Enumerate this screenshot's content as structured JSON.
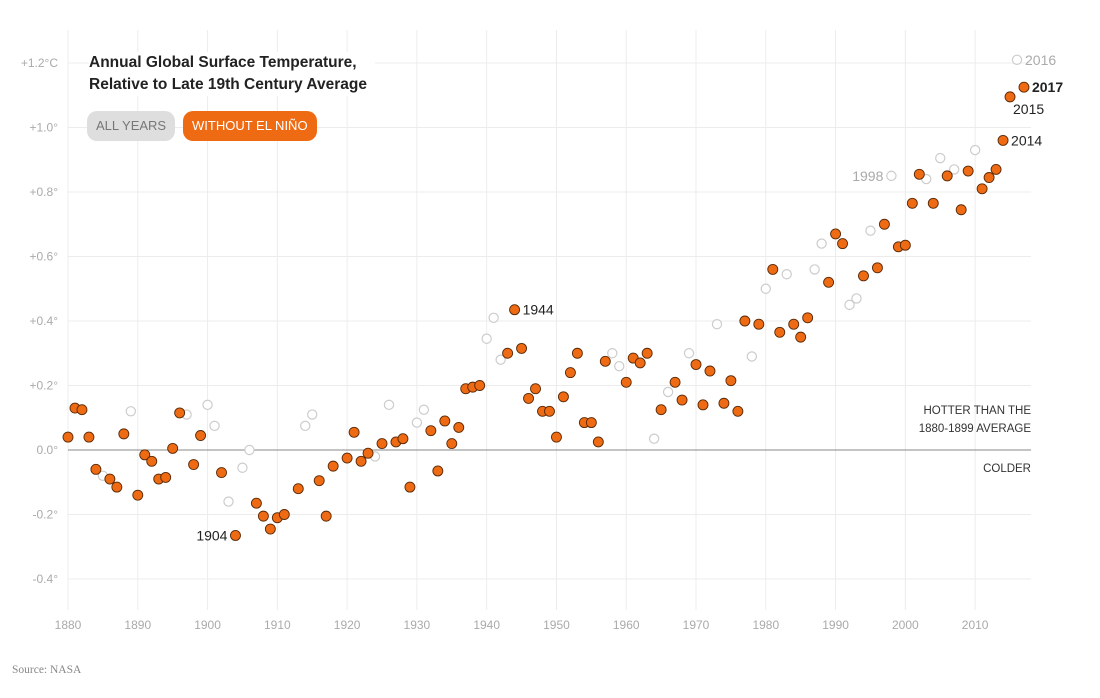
{
  "chart_data": {
    "type": "scatter",
    "title": "Annual Global Surface Temperature,\nRelative to Late 19th Century Average",
    "title_lines": [
      "Annual Global Surface Temperature,",
      "Relative to Late 19th Century Average"
    ],
    "xlim": [
      1880,
      2017
    ],
    "ylim": [
      -0.45,
      1.25
    ],
    "x_ticks": [
      1880,
      1890,
      1900,
      1910,
      1920,
      1930,
      1940,
      1950,
      1960,
      1970,
      1980,
      1990,
      2000,
      2010
    ],
    "x_tick_labels": [
      "1880",
      "1890",
      "1900",
      "1910",
      "1920",
      "1930",
      "1940",
      "1950",
      "1960",
      "1970",
      "1980",
      "1990",
      "2000",
      "2010"
    ],
    "y_ticks": [
      -0.4,
      -0.2,
      0.0,
      0.2,
      0.4,
      0.6,
      0.8,
      1.0,
      1.2
    ],
    "y_tick_labels": [
      "-0.4°",
      "-0.2°",
      "0.0°",
      "+0.2°",
      "+0.4°",
      "+0.6°",
      "+0.8°",
      "+1.0°",
      "+1.2°C"
    ],
    "grid": true,
    "colors": {
      "without_el_nino": "#ee6b13",
      "all_years": "#cccccc",
      "zero_line": "#888888"
    },
    "series": [
      {
        "name": "WITHOUT EL NIÑO",
        "x": [
          1880,
          1881,
          1882,
          1883,
          1884,
          1886,
          1887,
          1888,
          1890,
          1891,
          1892,
          1893,
          1894,
          1895,
          1896,
          1898,
          1899,
          1902,
          1904,
          1907,
          1908,
          1909,
          1910,
          1911,
          1913,
          1916,
          1917,
          1918,
          1920,
          1921,
          1922,
          1923,
          1925,
          1927,
          1928,
          1929,
          1932,
          1933,
          1934,
          1935,
          1936,
          1937,
          1938,
          1939,
          1943,
          1944,
          1945,
          1946,
          1947,
          1948,
          1949,
          1950,
          1951,
          1952,
          1953,
          1954,
          1955,
          1956,
          1957,
          1960,
          1961,
          1962,
          1963,
          1965,
          1967,
          1968,
          1970,
          1971,
          1972,
          1974,
          1975,
          1976,
          1977,
          1979,
          1981,
          1982,
          1984,
          1985,
          1986,
          1989,
          1990,
          1991,
          1994,
          1996,
          1997,
          1999,
          2000,
          2001,
          2002,
          2004,
          2006,
          2008,
          2009,
          2011,
          2012,
          2013,
          2014,
          2015,
          2017
        ],
        "y": [
          0.04,
          0.13,
          0.125,
          0.04,
          -0.06,
          -0.09,
          -0.115,
          0.05,
          -0.14,
          -0.015,
          -0.035,
          -0.09,
          -0.085,
          0.005,
          0.115,
          -0.045,
          0.045,
          -0.07,
          -0.265,
          -0.165,
          -0.205,
          -0.245,
          -0.21,
          -0.2,
          -0.12,
          -0.095,
          -0.205,
          -0.05,
          -0.025,
          0.055,
          -0.035,
          -0.01,
          0.02,
          0.025,
          0.035,
          -0.115,
          0.06,
          -0.065,
          0.09,
          0.02,
          0.07,
          0.19,
          0.195,
          0.2,
          0.3,
          0.435,
          0.315,
          0.16,
          0.19,
          0.12,
          0.12,
          0.04,
          0.165,
          0.24,
          0.3,
          0.085,
          0.085,
          0.025,
          0.275,
          0.21,
          0.285,
          0.27,
          0.3,
          0.125,
          0.21,
          0.155,
          0.265,
          0.14,
          0.245,
          0.145,
          0.215,
          0.12,
          0.4,
          0.39,
          0.56,
          0.365,
          0.39,
          0.35,
          0.41,
          0.52,
          0.67,
          0.64,
          0.54,
          0.565,
          0.7,
          0.63,
          0.635,
          0.765,
          0.855,
          0.765,
          0.85,
          0.745,
          0.865,
          0.81,
          0.845,
          0.87,
          0.96,
          1.095,
          1.125
        ]
      },
      {
        "name": "ALL YEARS",
        "x": [
          1885,
          1889,
          1897,
          1900,
          1901,
          1903,
          1905,
          1906,
          1914,
          1915,
          1924,
          1926,
          1930,
          1931,
          1940,
          1941,
          1942,
          1958,
          1959,
          1964,
          1966,
          1969,
          1973,
          1978,
          1980,
          1983,
          1987,
          1988,
          1992,
          1993,
          1995,
          1998,
          2003,
          2005,
          2007,
          2010,
          2016
        ],
        "y": [
          -0.08,
          0.12,
          0.11,
          0.14,
          0.075,
          -0.16,
          -0.055,
          0.0,
          0.075,
          0.11,
          -0.02,
          0.14,
          0.085,
          0.125,
          0.345,
          0.41,
          0.28,
          0.3,
          0.26,
          0.035,
          0.18,
          0.3,
          0.39,
          0.29,
          0.5,
          0.545,
          0.56,
          0.64,
          0.45,
          0.47,
          0.68,
          0.85,
          0.84,
          0.905,
          0.87,
          0.93,
          1.21
        ]
      }
    ],
    "point_labels": [
      {
        "x": 1904,
        "y": -0.265,
        "text": "1904",
        "side": "left",
        "style": "dark"
      },
      {
        "x": 1944,
        "y": 0.435,
        "text": "1944",
        "side": "right",
        "style": "dark"
      },
      {
        "x": 1998,
        "y": 0.85,
        "text": "1998",
        "side": "left",
        "style": "gray"
      },
      {
        "x": 2014,
        "y": 0.96,
        "text": "2014",
        "side": "right",
        "style": "dark"
      },
      {
        "x": 2015,
        "y": 1.095,
        "text": "2015",
        "side": "below-right",
        "style": "dark"
      },
      {
        "x": 2016,
        "y": 1.21,
        "text": "2016",
        "side": "right",
        "style": "gray"
      },
      {
        "x": 2017,
        "y": 1.125,
        "text": "2017",
        "side": "right",
        "style": "bold"
      }
    ],
    "annotations": {
      "hotter_line1": "HOTTER THAN THE",
      "hotter_line2": "1880-1899 AVERAGE",
      "colder": "COLDER"
    }
  },
  "buttons": {
    "all_years": "ALL YEARS",
    "without_el_nino": "WITHOUT EL NIÑO"
  },
  "source": "Source: NASA"
}
